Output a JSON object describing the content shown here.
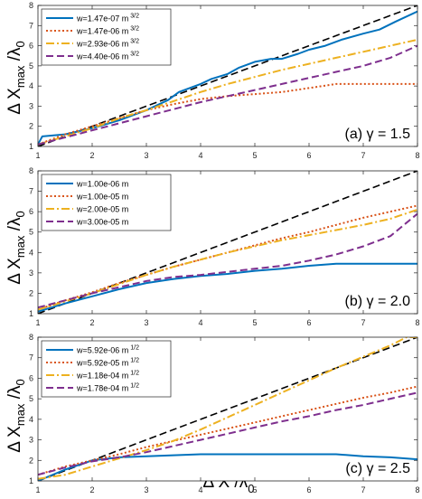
{
  "figure": {
    "ylabel": {
      "main": "Δ X",
      "sub1": "max",
      "mid": " /λ",
      "sub2": "0"
    },
    "xlabel": {
      "main": "Δ X /λ",
      "sub": "0"
    }
  },
  "colors": {
    "blue": "#0072BD",
    "red": "#D95319",
    "yellow": "#EDB120",
    "purple": "#7E2F8E",
    "reference": "#000000"
  },
  "chart_data": [
    {
      "type": "line",
      "panel_label": "(a) γ = 1.5",
      "xlim": [
        1,
        8
      ],
      "ylim": [
        1,
        8
      ],
      "xticks": [
        1,
        2,
        3,
        4,
        5,
        6,
        7,
        8
      ],
      "yticks": [
        1,
        2,
        3,
        4,
        5,
        6,
        7,
        8
      ],
      "legend_position": "top-left",
      "reference_line": {
        "style": "dashed",
        "color": "#000000",
        "x": [
          1,
          8
        ],
        "y": [
          1,
          8
        ]
      },
      "series": [
        {
          "name": "w=1.47e-07 m",
          "unit_exp": "3/2",
          "color": "#0072BD",
          "dash": "solid",
          "x": [
            1,
            1.08,
            1.5,
            2,
            2.5,
            3,
            3.4,
            3.6,
            4,
            4.2,
            4.5,
            4.7,
            5,
            5.3,
            5.5,
            5.8,
            6,
            6.3,
            6.6,
            7,
            7.3,
            7.6,
            8
          ],
          "y": [
            1.1,
            1.5,
            1.6,
            1.9,
            2.3,
            2.8,
            3.3,
            3.7,
            4.1,
            4.35,
            4.6,
            4.9,
            5.2,
            5.35,
            5.35,
            5.6,
            5.8,
            6.0,
            6.3,
            6.6,
            6.8,
            7.2,
            7.7
          ]
        },
        {
          "name": "w=1.47e-06 m",
          "unit_exp": "3/2",
          "color": "#D95319",
          "dash": "dotted",
          "x": [
            1,
            1.5,
            2,
            2.5,
            3,
            3.5,
            4,
            4.5,
            5,
            5.5,
            6,
            6.5,
            7,
            7.5,
            8
          ],
          "y": [
            1.1,
            1.6,
            2.0,
            2.4,
            2.8,
            3.1,
            3.35,
            3.5,
            3.6,
            3.7,
            3.9,
            4.1,
            4.1,
            4.1,
            4.1
          ]
        },
        {
          "name": "w=2.93e-06 m",
          "unit_exp": "3/2",
          "color": "#EDB120",
          "dash": "dashdot",
          "x": [
            1,
            1.5,
            2,
            2.5,
            3,
            3.5,
            4,
            4.5,
            5,
            5.5,
            6,
            6.5,
            7,
            7.5,
            8
          ],
          "y": [
            1.1,
            1.5,
            1.9,
            2.4,
            2.8,
            3.25,
            3.7,
            4.1,
            4.45,
            4.8,
            5.1,
            5.4,
            5.7,
            6.0,
            6.3
          ]
        },
        {
          "name": "w=4.40e-06 m",
          "unit_exp": "3/2",
          "color": "#7E2F8E",
          "dash": "dashed",
          "x": [
            1,
            1.5,
            2,
            2.5,
            3,
            3.5,
            4,
            4.5,
            5,
            5.5,
            6,
            6.5,
            7,
            7.5,
            8
          ],
          "y": [
            1.1,
            1.45,
            1.8,
            2.15,
            2.5,
            2.85,
            3.2,
            3.5,
            3.8,
            4.1,
            4.4,
            4.7,
            5.0,
            5.4,
            6.0
          ]
        }
      ]
    },
    {
      "type": "line",
      "panel_label": "(b) γ = 2.0",
      "xlim": [
        1,
        8
      ],
      "ylim": [
        1,
        8
      ],
      "xticks": [
        1,
        2,
        3,
        4,
        5,
        6,
        7,
        8
      ],
      "yticks": [
        1,
        2,
        3,
        4,
        5,
        6,
        7,
        8
      ],
      "legend_position": "top-left",
      "reference_line": {
        "style": "dashed",
        "color": "#000000",
        "x": [
          1,
          8
        ],
        "y": [
          1,
          8
        ]
      },
      "series": [
        {
          "name": "w=1.00e-06 m",
          "color": "#0072BD",
          "dash": "solid",
          "x": [
            1,
            1.5,
            2,
            2.5,
            3,
            3.5,
            4,
            4.5,
            5,
            5.5,
            6,
            6.5,
            7,
            7.5,
            8
          ],
          "y": [
            1.1,
            1.5,
            1.85,
            2.2,
            2.5,
            2.7,
            2.85,
            2.95,
            3.1,
            3.2,
            3.35,
            3.45,
            3.45,
            3.45,
            3.45
          ]
        },
        {
          "name": "w=1.00e-05 m",
          "color": "#D95319",
          "dash": "dotted",
          "x": [
            1,
            1.5,
            2,
            2.5,
            3,
            3.5,
            4,
            4.5,
            5,
            5.5,
            6,
            6.5,
            7,
            7.5,
            8
          ],
          "y": [
            1.2,
            1.65,
            2.05,
            2.5,
            2.9,
            3.3,
            3.65,
            4.0,
            4.35,
            4.7,
            5.0,
            5.35,
            5.7,
            6.0,
            6.3
          ]
        },
        {
          "name": "w=2.00e-05 m",
          "color": "#EDB120",
          "dash": "dashdot",
          "x": [
            1,
            1.5,
            2,
            2.5,
            3,
            3.5,
            4,
            4.5,
            5,
            5.5,
            6,
            6.5,
            7,
            7.5,
            8
          ],
          "y": [
            1.2,
            1.6,
            2.0,
            2.45,
            2.9,
            3.3,
            3.65,
            4.0,
            4.3,
            4.6,
            4.85,
            5.1,
            5.35,
            5.65,
            6.1
          ]
        },
        {
          "name": "w=3.00e-05 m",
          "color": "#7E2F8E",
          "dash": "dashed",
          "x": [
            1,
            1.5,
            2,
            2.5,
            3,
            3.5,
            4,
            4.5,
            5,
            5.5,
            6,
            6.5,
            7,
            7.5,
            8
          ],
          "y": [
            1.3,
            1.65,
            2.0,
            2.3,
            2.6,
            2.8,
            2.9,
            3.05,
            3.2,
            3.35,
            3.6,
            3.9,
            4.3,
            4.8,
            5.9
          ]
        }
      ]
    },
    {
      "type": "line",
      "panel_label": "(c) γ = 2.5",
      "xlim": [
        1,
        8
      ],
      "ylim": [
        1,
        8
      ],
      "xticks": [
        1,
        2,
        3,
        4,
        5,
        6,
        7,
        8
      ],
      "yticks": [
        1,
        2,
        3,
        4,
        5,
        6,
        7,
        8
      ],
      "legend_position": "top-left",
      "reference_line": {
        "style": "dashed",
        "color": "#000000",
        "x": [
          1,
          8
        ],
        "y": [
          1,
          8
        ]
      },
      "series": [
        {
          "name": "w=5.92e-06 m",
          "unit_exp": "1/2",
          "color": "#0072BD",
          "dash": "solid",
          "x": [
            1,
            1.5,
            2,
            2.5,
            3,
            3.5,
            4,
            4.5,
            5,
            5.5,
            6,
            6.5,
            7,
            7.5,
            8
          ],
          "y": [
            1.0,
            1.55,
            2.0,
            2.15,
            2.2,
            2.25,
            2.3,
            2.3,
            2.3,
            2.3,
            2.3,
            2.3,
            2.2,
            2.15,
            2.05
          ]
        },
        {
          "name": "w=5.92e-05 m",
          "unit_exp": "1/2",
          "color": "#D95319",
          "dash": "dotted",
          "x": [
            1,
            1.5,
            2,
            2.5,
            3,
            3.5,
            4,
            4.5,
            5,
            5.5,
            6,
            6.5,
            7,
            7.5,
            8
          ],
          "y": [
            1.3,
            1.7,
            2.0,
            2.3,
            2.65,
            2.95,
            3.25,
            3.55,
            3.85,
            4.15,
            4.45,
            4.75,
            5.05,
            5.3,
            5.6
          ]
        },
        {
          "name": "w=1.18e-04 m",
          "unit_exp": "1/2",
          "color": "#EDB120",
          "dash": "dashdot",
          "x": [
            1,
            1.5,
            2,
            2.5,
            3,
            3.5,
            4,
            4.5,
            5,
            5.5,
            6,
            6.5,
            7,
            7.5,
            7.8,
            8
          ],
          "y": [
            1.1,
            1.3,
            1.7,
            2.1,
            2.5,
            2.95,
            3.5,
            4.1,
            4.7,
            5.3,
            5.9,
            6.5,
            7.05,
            7.6,
            8.0,
            8.0
          ]
        },
        {
          "name": "w=1.78e-04 m",
          "unit_exp": "1/2",
          "color": "#7E2F8E",
          "dash": "dashed",
          "x": [
            1,
            1.5,
            2,
            2.5,
            3,
            3.5,
            4,
            4.5,
            5,
            5.5,
            6,
            6.5,
            7,
            7.5,
            8
          ],
          "y": [
            1.3,
            1.65,
            1.95,
            2.15,
            2.4,
            2.7,
            3.0,
            3.3,
            3.6,
            3.9,
            4.15,
            4.45,
            4.7,
            5.0,
            5.3
          ]
        }
      ]
    }
  ]
}
